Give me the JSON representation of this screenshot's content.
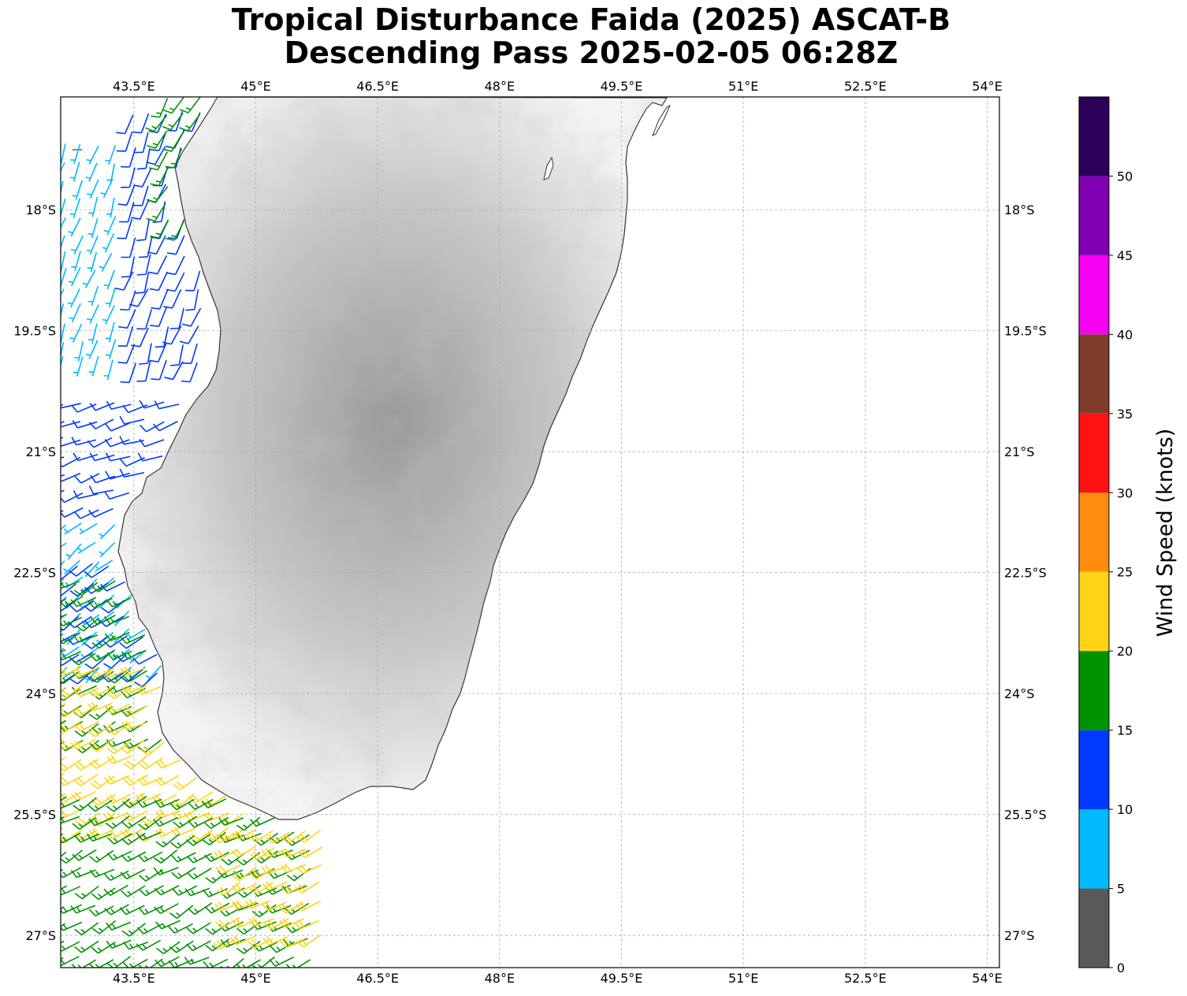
{
  "title": {
    "line1": "Tropical Disturbance Faida (2025) ASCAT-B",
    "line2": "Descending Pass 2025-02-05 06:28Z"
  },
  "map": {
    "lon_range": [
      42.6,
      54.15
    ],
    "lat_range": [
      -27.4,
      -16.6
    ],
    "lon_ticks": [
      {
        "value": 43.5,
        "label": "43.5°E"
      },
      {
        "value": 45,
        "label": "45°E"
      },
      {
        "value": 46.5,
        "label": "46.5°E"
      },
      {
        "value": 48,
        "label": "48°E"
      },
      {
        "value": 49.5,
        "label": "49.5°E"
      },
      {
        "value": 51,
        "label": "51°E"
      },
      {
        "value": 52.5,
        "label": "52.5°E"
      },
      {
        "value": 54,
        "label": "54°E"
      }
    ],
    "lat_ticks": [
      {
        "value": -18,
        "label": "18°S"
      },
      {
        "value": -19.5,
        "label": "19.5°S"
      },
      {
        "value": -21,
        "label": "21°S"
      },
      {
        "value": -22.5,
        "label": "22.5°S"
      },
      {
        "value": -24,
        "label": "24°S"
      },
      {
        "value": -25.5,
        "label": "25.5°S"
      },
      {
        "value": -27,
        "label": "27°S"
      }
    ],
    "gridlines": true,
    "land_shading": "grayscale-terrain"
  },
  "colorbar": {
    "label": "Wind Speed (knots)",
    "orientation": "vertical",
    "placement": "right",
    "bins": [
      {
        "min": 0,
        "max": 5,
        "color": "#595959"
      },
      {
        "min": 5,
        "max": 10,
        "color": "#00b9ff"
      },
      {
        "min": 10,
        "max": 15,
        "color": "#0039ff"
      },
      {
        "min": 15,
        "max": 20,
        "color": "#009300"
      },
      {
        "min": 20,
        "max": 25,
        "color": "#ffd414"
      },
      {
        "min": 25,
        "max": 30,
        "color": "#ff8c0d"
      },
      {
        "min": 30,
        "max": 35,
        "color": "#ff1212"
      },
      {
        "min": 35,
        "max": 40,
        "color": "#803c2a"
      },
      {
        "min": 40,
        "max": 45,
        "color": "#f500f0"
      },
      {
        "min": 45,
        "max": 50,
        "color": "#8200b4"
      },
      {
        "min": 50,
        "max": 55,
        "color": "#2a005a"
      }
    ],
    "tick_labels": [
      "0",
      "5",
      "10",
      "15",
      "20",
      "25",
      "30",
      "35",
      "40",
      "45",
      "50"
    ]
  },
  "wind_regions": [
    {
      "lat": [
        -17.2,
        -19.9
      ],
      "lon": [
        42.65,
        43.4
      ],
      "speed": 8,
      "dir": 200
    },
    {
      "lat": [
        -16.8,
        -20.0
      ],
      "lon": [
        43.5,
        44.5
      ],
      "speed": 12,
      "dir": 200
    },
    {
      "lat": [
        -16.6,
        -18.2
      ],
      "lon": [
        43.9,
        44.5
      ],
      "speed": 17,
      "dir": 210
    },
    {
      "lat": [
        -20.4,
        -21.9
      ],
      "lon": [
        42.65,
        44.1
      ],
      "speed": 12,
      "dir": 250
    },
    {
      "lat": [
        -21.9,
        -23.8
      ],
      "lon": [
        42.65,
        44.0
      ],
      "speed": 8,
      "dir": 230
    },
    {
      "lat": [
        -22.4,
        -23.8
      ],
      "lon": [
        42.8,
        44.0
      ],
      "speed": 12,
      "dir": 235
    },
    {
      "lat": [
        -22.6,
        -24.6
      ],
      "lon": [
        42.65,
        44.1
      ],
      "speed": 17,
      "dir": 240
    },
    {
      "lat": [
        -23.7,
        -25.8
      ],
      "lon": [
        42.65,
        44.9
      ],
      "speed": 22,
      "dir": 240
    },
    {
      "lat": [
        -25.3,
        -27.4
      ],
      "lon": [
        42.65,
        45.8
      ],
      "speed": 17,
      "dir": 240
    },
    {
      "lat": [
        -25.7,
        -27.2
      ],
      "lon": [
        44.8,
        46.0
      ],
      "speed": 22,
      "dir": 240
    }
  ]
}
